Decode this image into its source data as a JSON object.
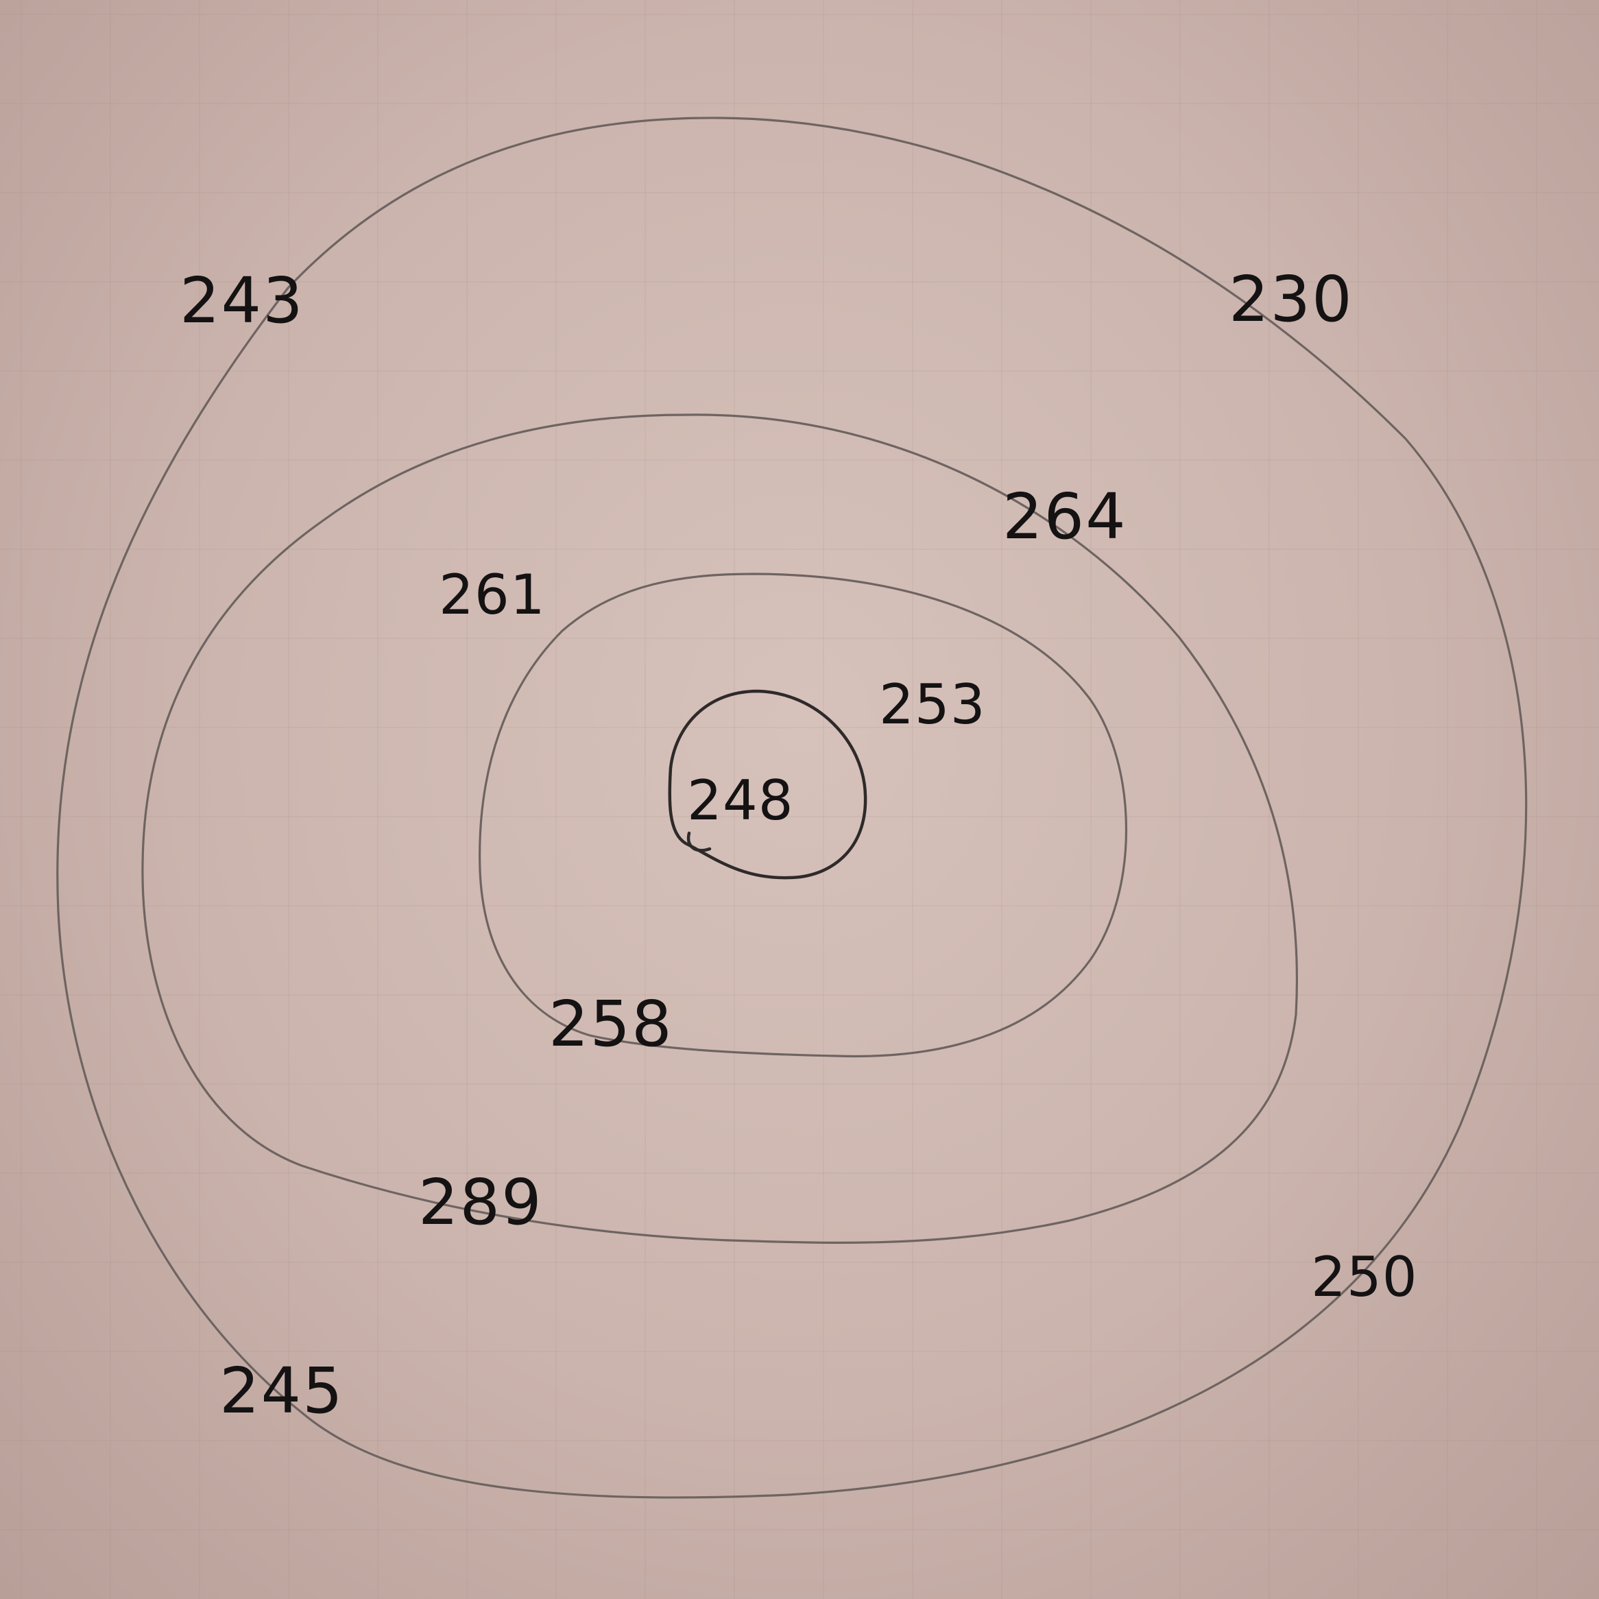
{
  "labels": {
    "outer_top_left": "243",
    "outer_top_right": "230",
    "outer_bottom_right": "250",
    "outer_bottom_left": "245",
    "ring2_top_right": "264",
    "ring2_top_left": "261",
    "ring2_bottom_left": "289",
    "ring3_top_right": "253",
    "ring3_bottom_left": "258",
    "center": "248"
  },
  "colors": {
    "paper": "#cdb7b0",
    "pencil": "#6e6461",
    "ink": "#141212"
  }
}
